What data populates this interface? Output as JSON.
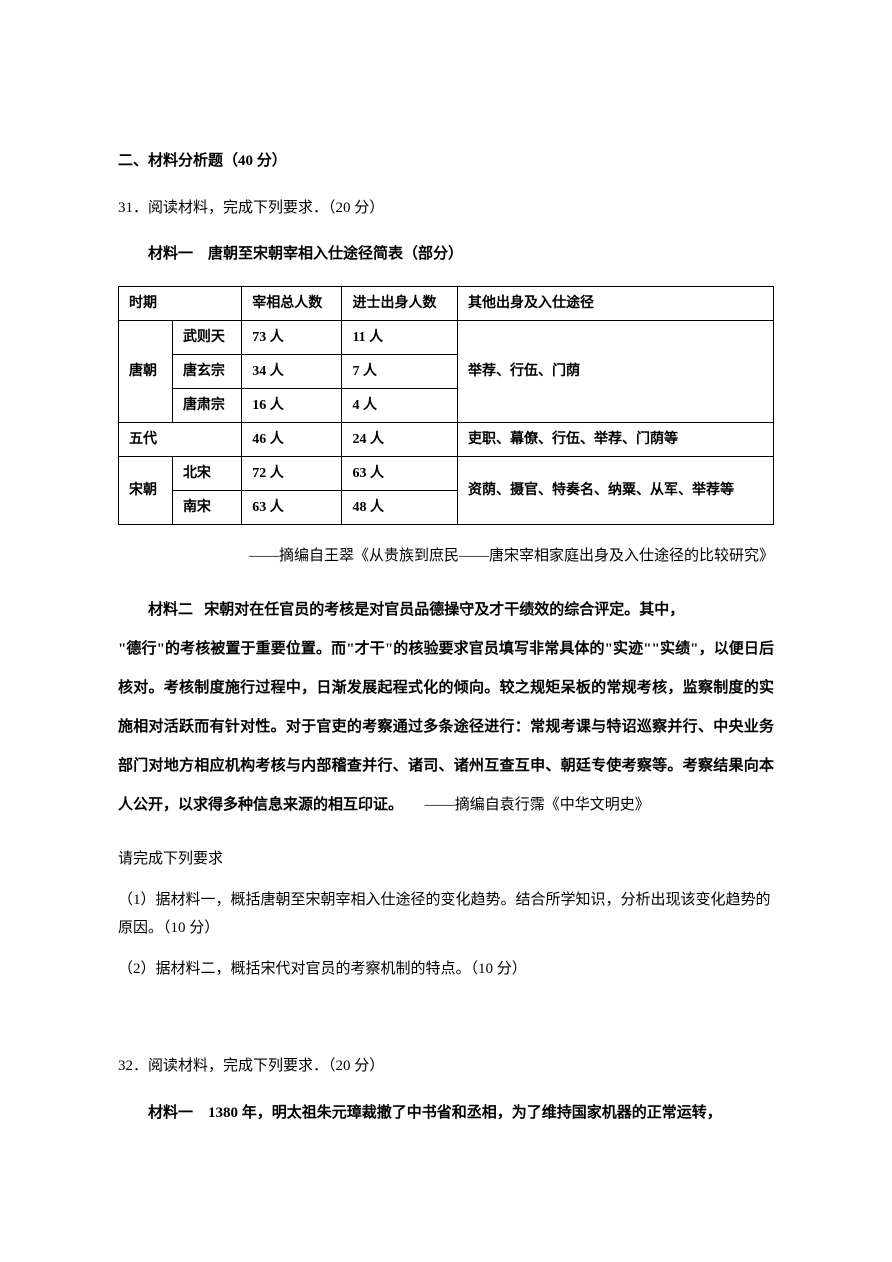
{
  "section": {
    "title": "二、材料分析题（40 分）"
  },
  "q31": {
    "intro": "31．阅读材料，完成下列要求．（20 分）",
    "material1": {
      "label": "材料一",
      "title": "唐朝至宋朝宰相入仕途径简表（部分）",
      "headers": {
        "period": "时期",
        "sub": "",
        "total": "宰相总人数",
        "jinshi": "进士出身人数",
        "other": "其他出身及入仕途径"
      },
      "rows": {
        "tang": {
          "label": "唐朝",
          "sub1": "武则天",
          "t1": "73 人",
          "j1": "11 人",
          "sub2": "唐玄宗",
          "t2": "34 人",
          "j2": "7 人",
          "sub3": "唐肃宗",
          "t3": "16 人",
          "j3": "4 人",
          "other": "举荐、行伍、门荫"
        },
        "wudai": {
          "label": "五代",
          "t": "46 人",
          "j": "24 人",
          "other": "吏职、幕僚、行伍、举荐、门荫等"
        },
        "song": {
          "label": "宋朝",
          "sub1": "北宋",
          "t1": "72 人",
          "j1": "63 人",
          "sub2": "南宋",
          "t2": "63 人",
          "j2": "48 人",
          "other": "资荫、摄官、特奏名、纳粟、从军、举荐等"
        }
      },
      "source": "——摘编自王翠《从贵族到庶民——唐宋宰相家庭出身及入仕途径的比较研究》"
    },
    "material2": {
      "label": "材料二",
      "body_first": "宋朝对在任官员的考核是对官员品德操守及才干绩效的综合评定。其中，",
      "body_rest": "\"德行\"的考核被置于重要位置。而\"才干\"的核验要求官员填写非常具体的\"实迹\"\"实绩\"，以便日后核对。考核制度施行过程中，日渐发展起程式化的倾向。较之规矩呆板的常规考核，监察制度的实施相对活跃而有针对性。对于官吏的考察通过多条途径进行：常规考课与特诏巡察并行、中央业务部门对地方相应机构考核与内部稽查并行、诸司、诸州互查互申、朝廷专使考察等。考察结果向本人公开，以求得多种信息来源的相互印证。",
      "source": "——摘编自袁行霈《中华文明史》"
    },
    "subprompt_header": "请完成下列要求",
    "sub1": "（1）据材料一，概括唐朝至宋朝宰相入仕途径的变化趋势。结合所学知识，分析出现该变化趋势的原因。（10 分）",
    "sub2": "（2）据材料二，概括宋代对官员的考察机制的特点。（10 分）"
  },
  "q32": {
    "intro": "32．阅读材料，完成下列要求．（20 分）",
    "material1": {
      "label": "材料一",
      "body": "1380 年，明太祖朱元璋裁撤了中书省和丞相，为了维持国家机器的正常运转，"
    }
  }
}
